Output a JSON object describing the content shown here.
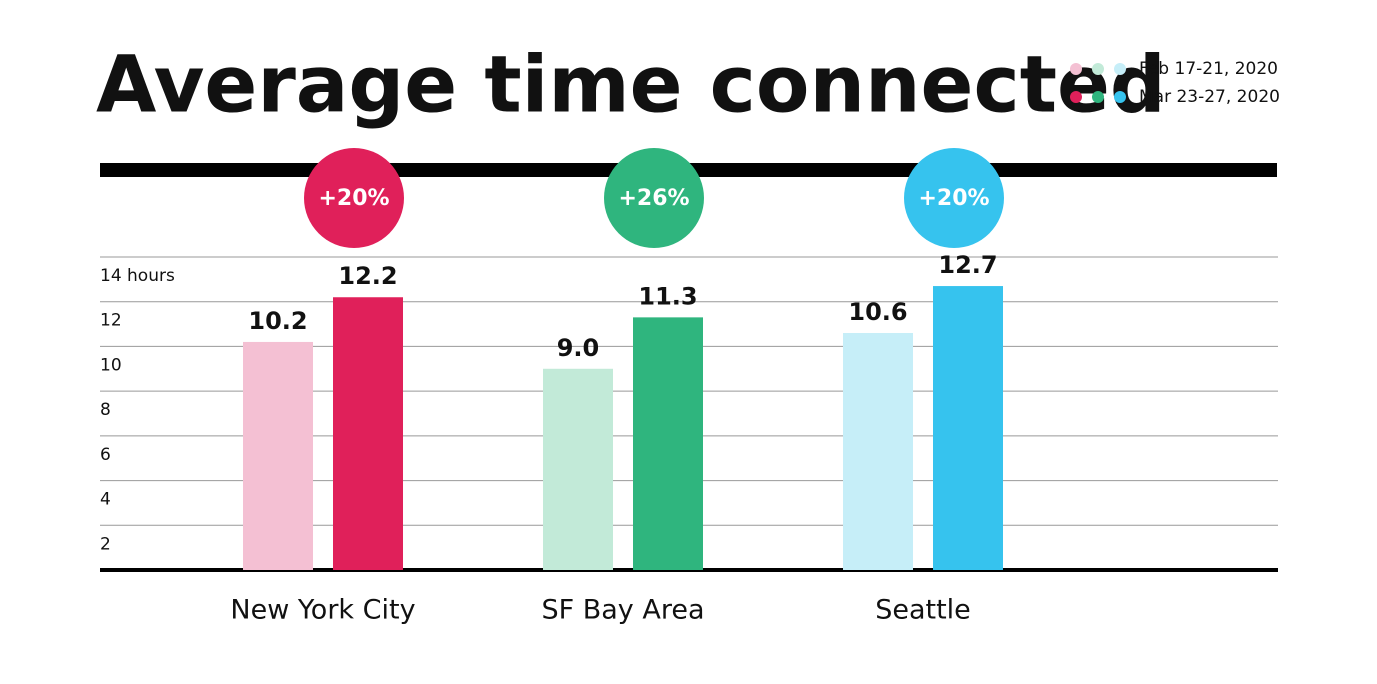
{
  "chart_data": {
    "type": "bar",
    "title": "Average time connected",
    "categories": [
      "New York City",
      "SF Bay Area",
      "Seattle"
    ],
    "series": [
      {
        "name": "Feb 17-21, 2020",
        "colors": [
          "#f4c0d3",
          "#c2ead8",
          "#c6eef8"
        ],
        "values": [
          10.2,
          9.0,
          10.6
        ],
        "value_labels": [
          "10.2",
          "9.0",
          "10.6"
        ]
      },
      {
        "name": "Mar 23-27, 2020",
        "colors": [
          "#e0205a",
          "#2fb57e",
          "#36c3ee"
        ],
        "values": [
          12.2,
          11.3,
          12.7
        ],
        "value_labels": [
          "12.2",
          "11.3",
          "12.7"
        ]
      }
    ],
    "annotations": [
      "+20%",
      "+26%",
      "+20%"
    ],
    "ylim": [
      0,
      14
    ],
    "yticks": [
      2,
      4,
      6,
      8,
      10,
      12,
      {
        "value": 14,
        "label": "14 hours"
      }
    ],
    "grid": true
  }
}
